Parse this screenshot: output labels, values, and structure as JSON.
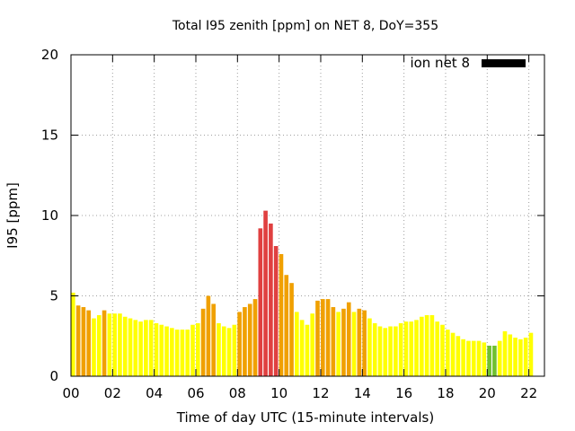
{
  "chart_data": {
    "type": "bar",
    "title": "Total I95 zenith [ppm] on NET 8, DoY=355",
    "xlabel": "Time of day UTC (15-minute intervals)",
    "ylabel": "I95 [ppm]",
    "ylim": [
      0,
      20
    ],
    "xlim": [
      0,
      22.75
    ],
    "grid": true,
    "legend": {
      "label": "ion net 8",
      "placement": "top-right",
      "color": "#000000"
    },
    "x_ticks": [
      "00",
      "02",
      "04",
      "06",
      "08",
      "10",
      "12",
      "14",
      "16",
      "18",
      "20",
      "22"
    ],
    "y_ticks": [
      "0",
      "5",
      "10",
      "15",
      "20"
    ],
    "interval_hours": 0.25,
    "colors": {
      "low": "#ffff00",
      "moderate": "#f0a000",
      "high": "#e04040",
      "very_low": "#70c030"
    },
    "values": [
      5.2,
      4.4,
      4.3,
      4.1,
      3.6,
      3.8,
      4.1,
      3.9,
      3.9,
      3.9,
      3.7,
      3.6,
      3.5,
      3.4,
      3.5,
      3.5,
      3.3,
      3.2,
      3.1,
      3.0,
      2.9,
      2.9,
      2.9,
      3.2,
      3.3,
      4.2,
      5.0,
      4.5,
      3.3,
      3.1,
      3.0,
      3.2,
      4.0,
      4.3,
      4.5,
      4.8,
      9.2,
      10.3,
      9.5,
      8.1,
      7.6,
      6.3,
      5.8,
      4.0,
      3.5,
      3.2,
      3.9,
      4.7,
      4.8,
      4.8,
      4.3,
      4.0,
      4.2,
      4.6,
      4.0,
      4.2,
      4.1,
      3.6,
      3.3,
      3.1,
      3.0,
      3.1,
      3.1,
      3.3,
      3.4,
      3.4,
      3.5,
      3.7,
      3.8,
      3.8,
      3.4,
      3.2,
      2.9,
      2.7,
      2.5,
      2.3,
      2.2,
      2.2,
      2.2,
      2.1,
      1.9,
      1.9,
      2.2,
      2.8,
      2.6,
      2.4,
      2.3,
      2.4,
      2.7
    ],
    "categories": [
      "low",
      "moderate",
      "moderate",
      "moderate",
      "low",
      "low",
      "moderate",
      "low",
      "low",
      "low",
      "low",
      "low",
      "low",
      "low",
      "low",
      "low",
      "low",
      "low",
      "low",
      "low",
      "low",
      "low",
      "low",
      "low",
      "low",
      "moderate",
      "moderate",
      "moderate",
      "low",
      "low",
      "low",
      "low",
      "moderate",
      "moderate",
      "moderate",
      "moderate",
      "high",
      "high",
      "high",
      "high",
      "moderate",
      "moderate",
      "moderate",
      "low",
      "low",
      "low",
      "low",
      "moderate",
      "moderate",
      "moderate",
      "moderate",
      "low",
      "moderate",
      "moderate",
      "low",
      "moderate",
      "moderate",
      "low",
      "low",
      "low",
      "low",
      "low",
      "low",
      "low",
      "low",
      "low",
      "low",
      "low",
      "low",
      "low",
      "low",
      "low",
      "low",
      "low",
      "low",
      "low",
      "low",
      "low",
      "low",
      "low",
      "very_low",
      "very_low",
      "low",
      "low",
      "low",
      "low",
      "low",
      "low",
      "low"
    ]
  }
}
